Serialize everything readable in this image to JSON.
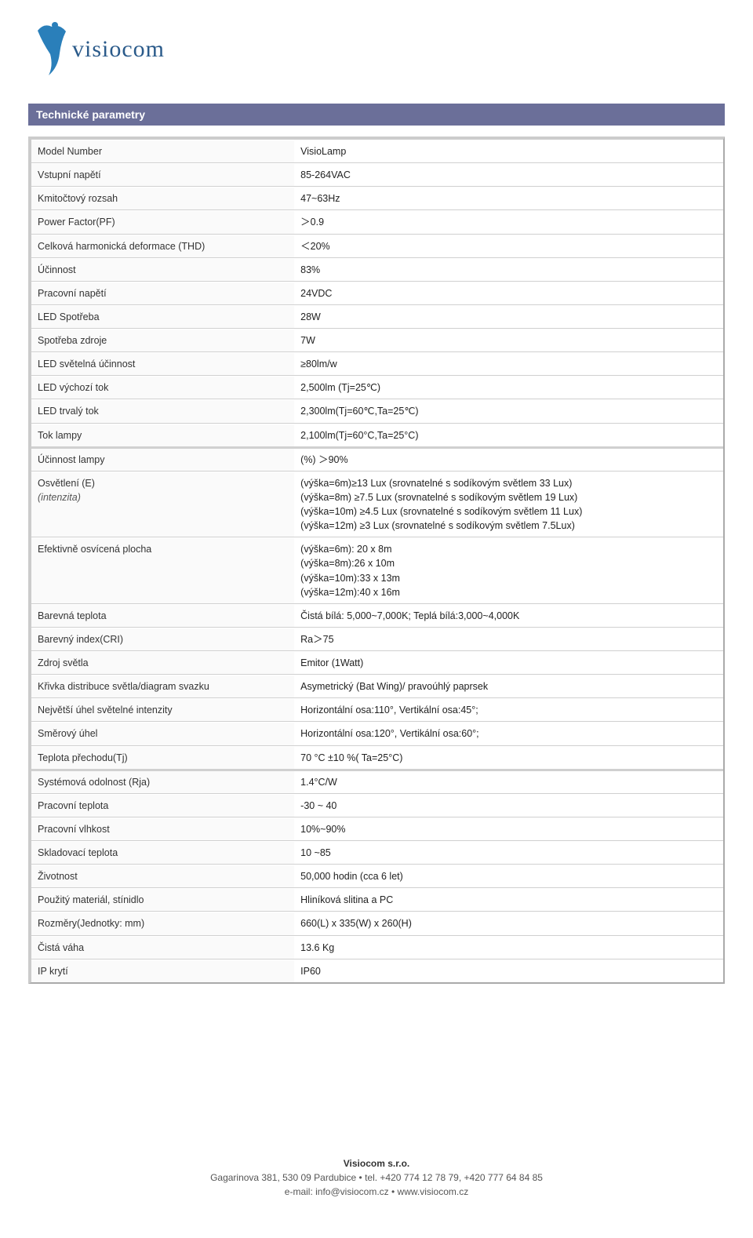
{
  "header": {
    "company_name": "visiocom",
    "logo_colors": {
      "swoosh": "#2a7fba",
      "text": "#2a5a8a"
    },
    "section_title": "Technické parametry",
    "section_bg": "#6b6f99",
    "section_fg": "#ffffff"
  },
  "table": {
    "border_color": "#cccccc",
    "row_border": "#d0d0d0",
    "label_bg": "#fafafa",
    "value_bg": "#ffffff",
    "rows": [
      {
        "label": "Model Number",
        "value": "VisioLamp"
      },
      {
        "label": "Vstupní napětí",
        "value": "85-264VAC"
      },
      {
        "label": "Kmitočtový rozsah",
        "value": "47~63Hz"
      },
      {
        "label": "Power Factor(PF)",
        "value": "＞0.9"
      },
      {
        "label": "Celková harmonická deformace (THD)",
        "value": "＜20%"
      },
      {
        "label": "Účinnost",
        "value": "83%"
      },
      {
        "label": "Pracovní napětí",
        "value": "24VDC"
      },
      {
        "label": "LED Spotřeba",
        "value": "28W"
      },
      {
        "label": "Spotřeba zdroje",
        "value": "7W"
      },
      {
        "label": "LED světelná účinnost",
        "value": "≥80lm/w"
      },
      {
        "label": "LED výchozí tok",
        "value": "2,500lm (Tj=25℃)"
      },
      {
        "label": "LED trvalý tok",
        "value": "2,300lm(Tj=60℃,Ta=25℃)"
      },
      {
        "label": "Tok lampy",
        "value": "2,100lm(Tj=60°C,Ta=25°C)"
      },
      {
        "label": "Účinnost lampy",
        "value": "(%) ＞90%",
        "thick": true
      },
      {
        "label": "Osvětlení (E)\n(intenzita)",
        "label_sub": true,
        "value": "(výška=6m)≥13 Lux (srovnatelné s sodíkovým světlem 33 Lux)\n(výška=8m) ≥7.5 Lux (srovnatelné s sodíkovým světlem 19 Lux)\n(výška=10m) ≥4.5 Lux (srovnatelné s sodíkovým světlem 11 Lux)\n(výška=12m) ≥3 Lux (srovnatelné s sodíkovým světlem 7.5Lux)"
      },
      {
        "label": "Efektivně osvícená plocha",
        "value": "(výška=6m): 20 x 8m\n(výška=8m):26 x 10m\n(výška=10m):33 x 13m\n(výška=12m):40 x 16m"
      },
      {
        "label": "Barevná teplota",
        "value": "Čistá bílá: 5,000~7,000K; Teplá bílá:3,000~4,000K"
      },
      {
        "label": "Barevný index(CRI)",
        "value": "Ra＞75"
      },
      {
        "label": "Zdroj světla",
        "value": "Emitor (1Watt)"
      },
      {
        "label": "Křivka distribuce světla/diagram svazku",
        "value": "Asymetrický (Bat Wing)/ pravoúhlý paprsek"
      },
      {
        "label": "Největší úhel světelné intenzity",
        "value": "Horizontální osa:110°, Vertikální osa:45°;"
      },
      {
        "label": "Směrový úhel",
        "value": "Horizontální osa:120°, Vertikální osa:60°;"
      },
      {
        "label": "Teplota přechodu(Tj)",
        "value": "70 °C ±10 %( Ta=25°C)"
      },
      {
        "label": "Systémová odolnost (Rja)",
        "value": "1.4°C/W",
        "thick": true
      },
      {
        "label": "Pracovní teplota",
        "value": "-30 ~ 40"
      },
      {
        "label": "Pracovní vlhkost",
        "value": "10%~90%"
      },
      {
        "label": "Skladovací teplota",
        "value": "10 ~85"
      },
      {
        "label": "Životnost",
        "value": "50,000 hodin (cca 6 let)"
      },
      {
        "label": "Použitý materiál, stínidlo",
        "value": "Hliníková slitina a PC"
      },
      {
        "label": "Rozměry(Jednotky: mm)",
        "value": "660(L) x 335(W) x 260(H)"
      },
      {
        "label": "Čistá váha",
        "value": "13.6 Kg"
      },
      {
        "label": "IP krytí",
        "value": "IP60"
      }
    ]
  },
  "footer": {
    "company": "Visiocom s.r.o.",
    "address": "Gagarinova 381, 530 09 Pardubice • tel. +420 774 12 78 79, +420 777 64 84 85",
    "contact": "e-mail: info@visiocom.cz • www.visiocom.cz"
  }
}
